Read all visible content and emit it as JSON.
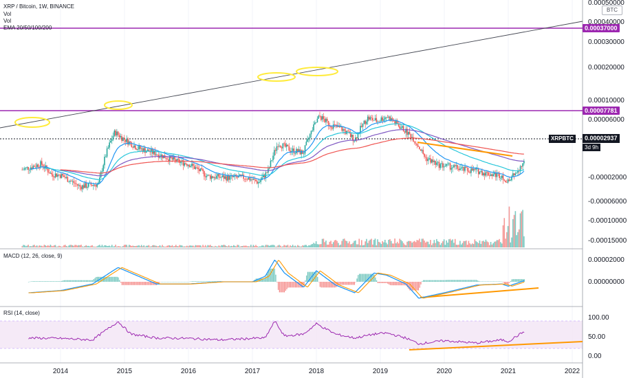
{
  "header": {
    "title": "XRP / Bitcoin, 1W, BINANCE",
    "vol1": "Vol",
    "vol2": "Vol",
    "ema": "EMA 20/50/100/200",
    "currency_badge": "BTC"
  },
  "panes": {
    "macd_title": "MACD (12, 26, close, 9)",
    "rsi_title": "RSI (14, close)"
  },
  "price_axis": {
    "labels": [
      "0.00050000",
      "0.00040000",
      "0.00030000",
      "0.00020000",
      "0.00010000",
      "0.00006000",
      "-0.00002000",
      "-0.00006000",
      "-0.00010000",
      "-0.00015000"
    ],
    "highlight_1": "0.00037000",
    "highlight_2": "0.00007781",
    "current_price": "0.00002937",
    "symbol": "XRPBTC",
    "countdown": "3d 9h"
  },
  "macd_axis": {
    "labels": [
      "0.00002000",
      "0.00000000"
    ]
  },
  "rsi_axis": {
    "labels": [
      "100.00",
      "50.00",
      "0.00"
    ]
  },
  "colors": {
    "up": "#26a69a",
    "down": "#ef5350",
    "purple_line": "#9c27b0",
    "ema20": "#2196f3",
    "ema50": "#26c6da",
    "ema100": "#7e57c2",
    "ema200": "#ef5350",
    "macd": "#2196f3",
    "signal": "#ff9800",
    "rsi": "#9c27b0",
    "rsi_band": "#e8d5f7",
    "annotation_orange": "#ff9800",
    "annotation_yellow": "#ffeb3b"
  },
  "chart_data": {
    "type": "line",
    "title": "XRP / Bitcoin, 1W, BINANCE",
    "x_ticks": [
      "2014",
      "2015",
      "2016",
      "2017",
      "2018",
      "2019",
      "2020",
      "2021",
      "2022"
    ],
    "price": {
      "x": [
        2013.4,
        2013.7,
        2013.85,
        2014.0,
        2014.3,
        2014.6,
        2014.85,
        2014.95,
        2015.2,
        2015.5,
        2015.8,
        2016.0,
        2016.3,
        2016.6,
        2016.9,
        2017.1,
        2017.25,
        2017.4,
        2017.6,
        2017.8,
        2017.95,
        2018.05,
        2018.2,
        2018.4,
        2018.6,
        2018.8,
        2018.95,
        2019.1,
        2019.3,
        2019.5,
        2019.7,
        2019.9,
        2020.1,
        2020.3,
        2020.5,
        2020.7,
        2020.9,
        2021.0,
        2021.1,
        2021.25
      ],
      "values": [
        2.55e-05,
        2.85e-05,
        2.35e-05,
        2.3e-05,
        1.85e-05,
        1.95e-05,
        5.2e-05,
        4.7e-05,
        3.85e-05,
        3.45e-05,
        3e-05,
        2.85e-05,
        2.25e-05,
        2.2e-05,
        2.2e-05,
        2e-05,
        2.5e-05,
        4.2e-05,
        3.7e-05,
        3.5e-05,
        5.6e-05,
        7e-05,
        6e-05,
        5.5e-05,
        4.5e-05,
        6.8e-05,
        6.4e-05,
        7e-05,
        5.8e-05,
        4.7e-05,
        3.2e-05,
        2.8e-05,
        2.7e-05,
        2.55e-05,
        2.5e-05,
        2.35e-05,
        2.3e-05,
        2e-05,
        2.35e-05,
        2.95e-05
      ]
    },
    "horizontal_lines": [
      0.00037,
      7.781e-05
    ],
    "current_price": 2.937e-05,
    "macd": {
      "x": [
        2013.5,
        2014.0,
        2014.5,
        2014.9,
        2015.1,
        2015.5,
        2016.0,
        2016.5,
        2017.0,
        2017.2,
        2017.35,
        2017.5,
        2017.8,
        2018.0,
        2018.3,
        2018.6,
        2018.9,
        2019.1,
        2019.4,
        2019.6,
        2020.0,
        2020.5,
        2020.9,
        2021.0,
        2021.25
      ],
      "values": [
        -1e-06,
        -8e-07,
        -2e-07,
        1.3e-06,
        8e-07,
        -2e-07,
        -2e-07,
        0.0,
        0.0,
        5e-07,
        2e-06,
        8e-07,
        -5e-07,
        1e-06,
        -3e-07,
        -1e-06,
        8e-07,
        6e-07,
        -2e-07,
        -1.5e-06,
        -1e-06,
        -3e-07,
        -2e-07,
        -4e-07,
        1e-07
      ]
    },
    "rsi": {
      "x": [
        2013.5,
        2014.0,
        2014.5,
        2014.9,
        2015.1,
        2015.5,
        2016.0,
        2016.5,
        2017.0,
        2017.2,
        2017.35,
        2017.5,
        2017.8,
        2018.0,
        2018.3,
        2018.6,
        2018.9,
        2019.1,
        2019.4,
        2019.6,
        2020.0,
        2020.5,
        2020.9,
        2021.0,
        2021.25
      ],
      "values": [
        45,
        44,
        40,
        88,
        55,
        45,
        44,
        40,
        44,
        45,
        89,
        50,
        55,
        82,
        55,
        45,
        55,
        58,
        45,
        30,
        38,
        32,
        40,
        36,
        62
      ],
      "ylim": [
        0,
        100
      ],
      "band": [
        30,
        70
      ]
    }
  }
}
